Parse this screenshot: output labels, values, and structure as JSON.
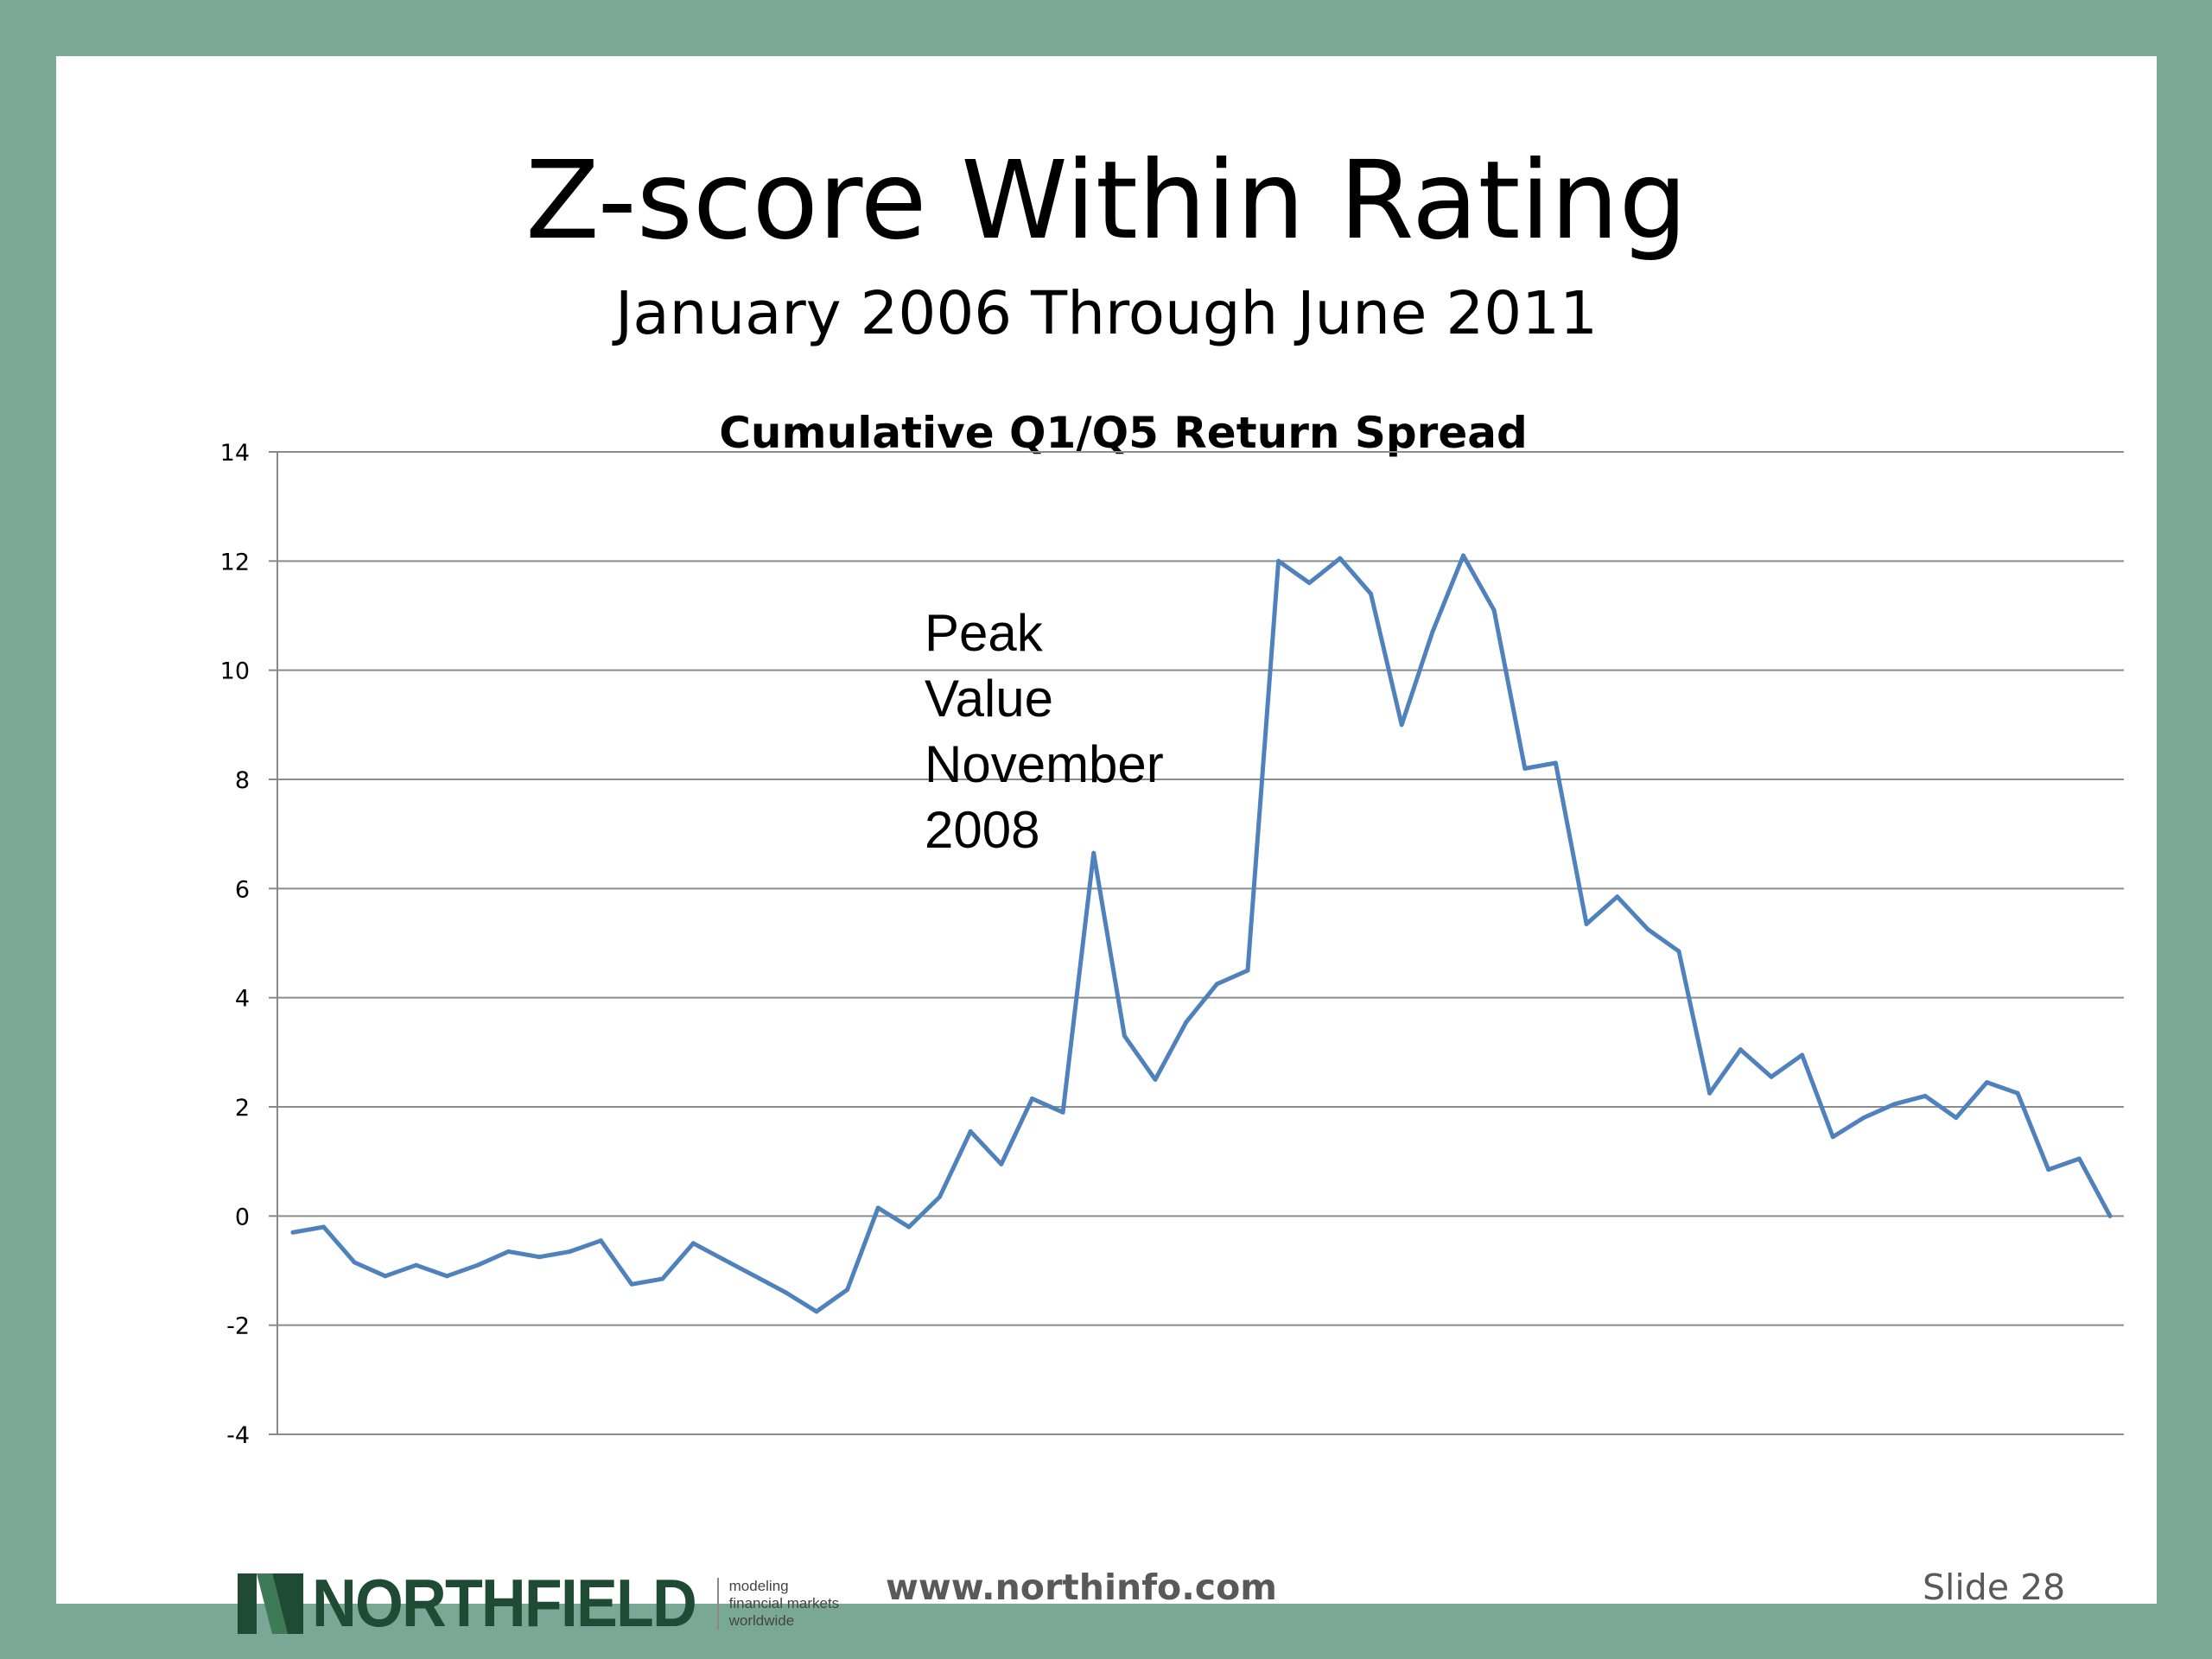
{
  "slide": {
    "title": "Z-score Within Rating",
    "subtitle": "January 2006 Through June 2011",
    "footer_url": "www.northinfo.com",
    "slide_number": "Slide 28"
  },
  "logo": {
    "name": "NORTHFIELD",
    "tagline": [
      "modeling",
      "financial markets",
      "worldwide"
    ]
  },
  "colors": {
    "frame": "#7ba896",
    "line": "#4f81bd",
    "logo": "#1f4a33"
  },
  "chart_data": {
    "type": "line",
    "title": "Cumulative  Q1/Q5 Return Spread",
    "xlabel": "",
    "ylabel": "",
    "ylim": [
      -4,
      14
    ],
    "yticks": [
      -4,
      -2,
      0,
      2,
      4,
      6,
      8,
      10,
      12,
      14
    ],
    "grid": true,
    "annotation": [
      "Peak",
      "Value",
      "November",
      "2008"
    ],
    "series": [
      {
        "values": [
          -0.3,
          -0.2,
          -0.85,
          -1.1,
          -0.9,
          -1.1,
          -0.9,
          -0.65,
          -0.75,
          -0.65,
          -0.45,
          -1.25,
          -1.15,
          -0.5,
          -0.8,
          -1.1,
          -1.4,
          -1.75,
          -1.35,
          0.15,
          -0.2,
          0.35,
          1.55,
          0.95,
          2.15,
          1.9,
          6.65,
          3.3,
          2.5,
          3.55,
          4.25,
          4.5,
          12.0,
          11.6,
          12.05,
          11.4,
          9.0,
          10.7,
          12.1,
          11.1,
          8.2,
          8.3,
          5.35,
          5.85,
          5.25,
          4.85,
          2.25,
          3.05,
          2.55,
          2.95,
          1.45,
          1.8,
          2.05,
          2.2,
          1.8,
          2.45,
          2.25,
          0.85,
          1.05,
          0.0
        ]
      }
    ]
  }
}
